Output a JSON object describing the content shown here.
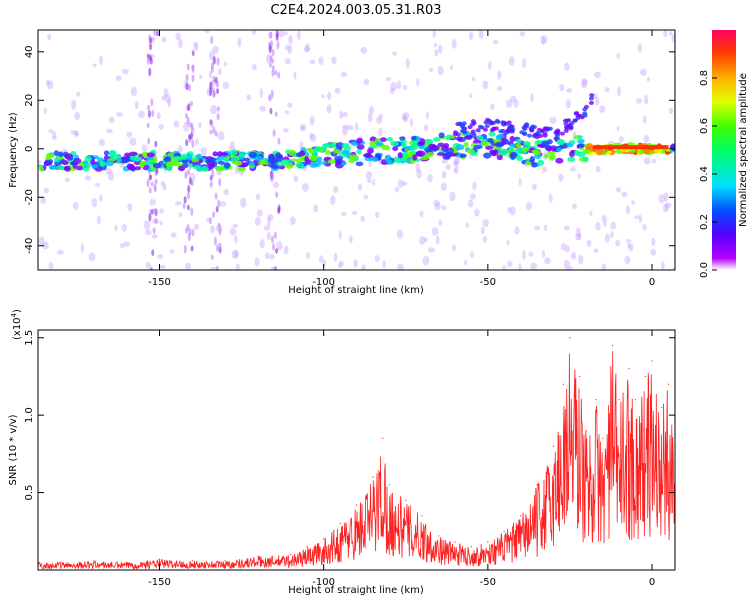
{
  "title": "C2E4.2024.003.05.31.R03",
  "chart_data": [
    {
      "type": "heatmap",
      "xlabel": "Height of straight line (km)",
      "ylabel": "Frequency (Hz)",
      "xlim": [
        -187,
        7
      ],
      "ylim": [
        -50,
        49
      ],
      "xticks": [
        -150,
        -100,
        -50,
        0
      ],
      "xtick_labels": [
        "-150",
        "-100",
        "-50",
        "0"
      ],
      "yticks": [
        -40,
        -20,
        0,
        20,
        40
      ],
      "ytick_labels": [
        "-40",
        "-20",
        "0",
        "20",
        "40"
      ],
      "grid": false,
      "colorbar": {
        "label": "Normalized spectral amplitude",
        "range": [
          0,
          1
        ],
        "ticks": [
          0.0,
          0.2,
          0.4,
          0.6,
          0.8
        ],
        "tick_labels": [
          "0.0",
          "0.2",
          "0.4",
          "0.6",
          "0.8"
        ],
        "colors": [
          "#ffffff",
          "#b300ff",
          "#5000ff",
          "#0050ff",
          "#00e0ff",
          "#00ff60",
          "#40ff00",
          "#e0ff00",
          "#ffb000",
          "#ff4000",
          "#ff0060"
        ]
      },
      "ridge": [
        {
          "x": -187,
          "y": -5
        },
        {
          "x": -170,
          "y": -5
        },
        {
          "x": -150,
          "y": -5
        },
        {
          "x": -130,
          "y": -5
        },
        {
          "x": -115,
          "y": -5
        },
        {
          "x": -100,
          "y": -3
        },
        {
          "x": -85,
          "y": -1
        },
        {
          "x": -70,
          "y": 0
        },
        {
          "x": -55,
          "y": 2
        },
        {
          "x": -45,
          "y": 1
        },
        {
          "x": -35,
          "y": -2
        },
        {
          "x": -25,
          "y": 0
        },
        {
          "x": -15,
          "y": 0
        },
        {
          "x": -5,
          "y": 0
        },
        {
          "x": 7,
          "y": 0
        }
      ],
      "upper_branch": [
        {
          "x": -60,
          "y": 8
        },
        {
          "x": -50,
          "y": 10
        },
        {
          "x": -40,
          "y": 8
        },
        {
          "x": -30,
          "y": 6
        },
        {
          "x": -20,
          "y": 15
        },
        {
          "x": -18,
          "y": 22
        }
      ]
    },
    {
      "type": "line",
      "xlabel": "Height of straight line (km)",
      "ylabel": "SNR (10 * v/v)",
      "y_scale_note": "(x10",
      "y_scale_exp": "4",
      "y_scale_close": ")",
      "xlim": [
        -187,
        7
      ],
      "ylim": [
        0,
        1.55
      ],
      "xticks": [
        -150,
        -100,
        -50,
        0
      ],
      "xtick_labels": [
        "-150",
        "-100",
        "-50",
        "0"
      ],
      "yticks": [
        0.5,
        1.0,
        1.5
      ],
      "ytick_labels": [
        "0.5",
        "1.0",
        "1.5"
      ],
      "grid": false,
      "color": "#ff2020",
      "series": [
        {
          "x": [
            -187,
            -180,
            -170,
            -160,
            -150,
            -140,
            -130,
            -120,
            -110,
            -105,
            -100,
            -95,
            -90,
            -85,
            -82,
            -80,
            -75,
            -70,
            -65,
            -60,
            -55,
            -50,
            -45,
            -40,
            -35,
            -30,
            -27,
            -25,
            -22,
            -20,
            -17,
            -15,
            -12,
            -10,
            -7,
            -5,
            -2,
            0,
            3,
            5,
            7
          ],
          "y": [
            0.05,
            0.05,
            0.06,
            0.05,
            0.07,
            0.06,
            0.06,
            0.09,
            0.1,
            0.15,
            0.2,
            0.3,
            0.42,
            0.6,
            0.85,
            0.55,
            0.45,
            0.35,
            0.22,
            0.18,
            0.15,
            0.18,
            0.25,
            0.35,
            0.55,
            0.8,
            1.2,
            1.5,
            1.25,
            0.9,
            1.1,
            0.85,
            1.45,
            1.1,
            1.3,
            1.1,
            1.25,
            1.35,
            1.05,
            1.2,
            1.0
          ]
        }
      ]
    }
  ]
}
